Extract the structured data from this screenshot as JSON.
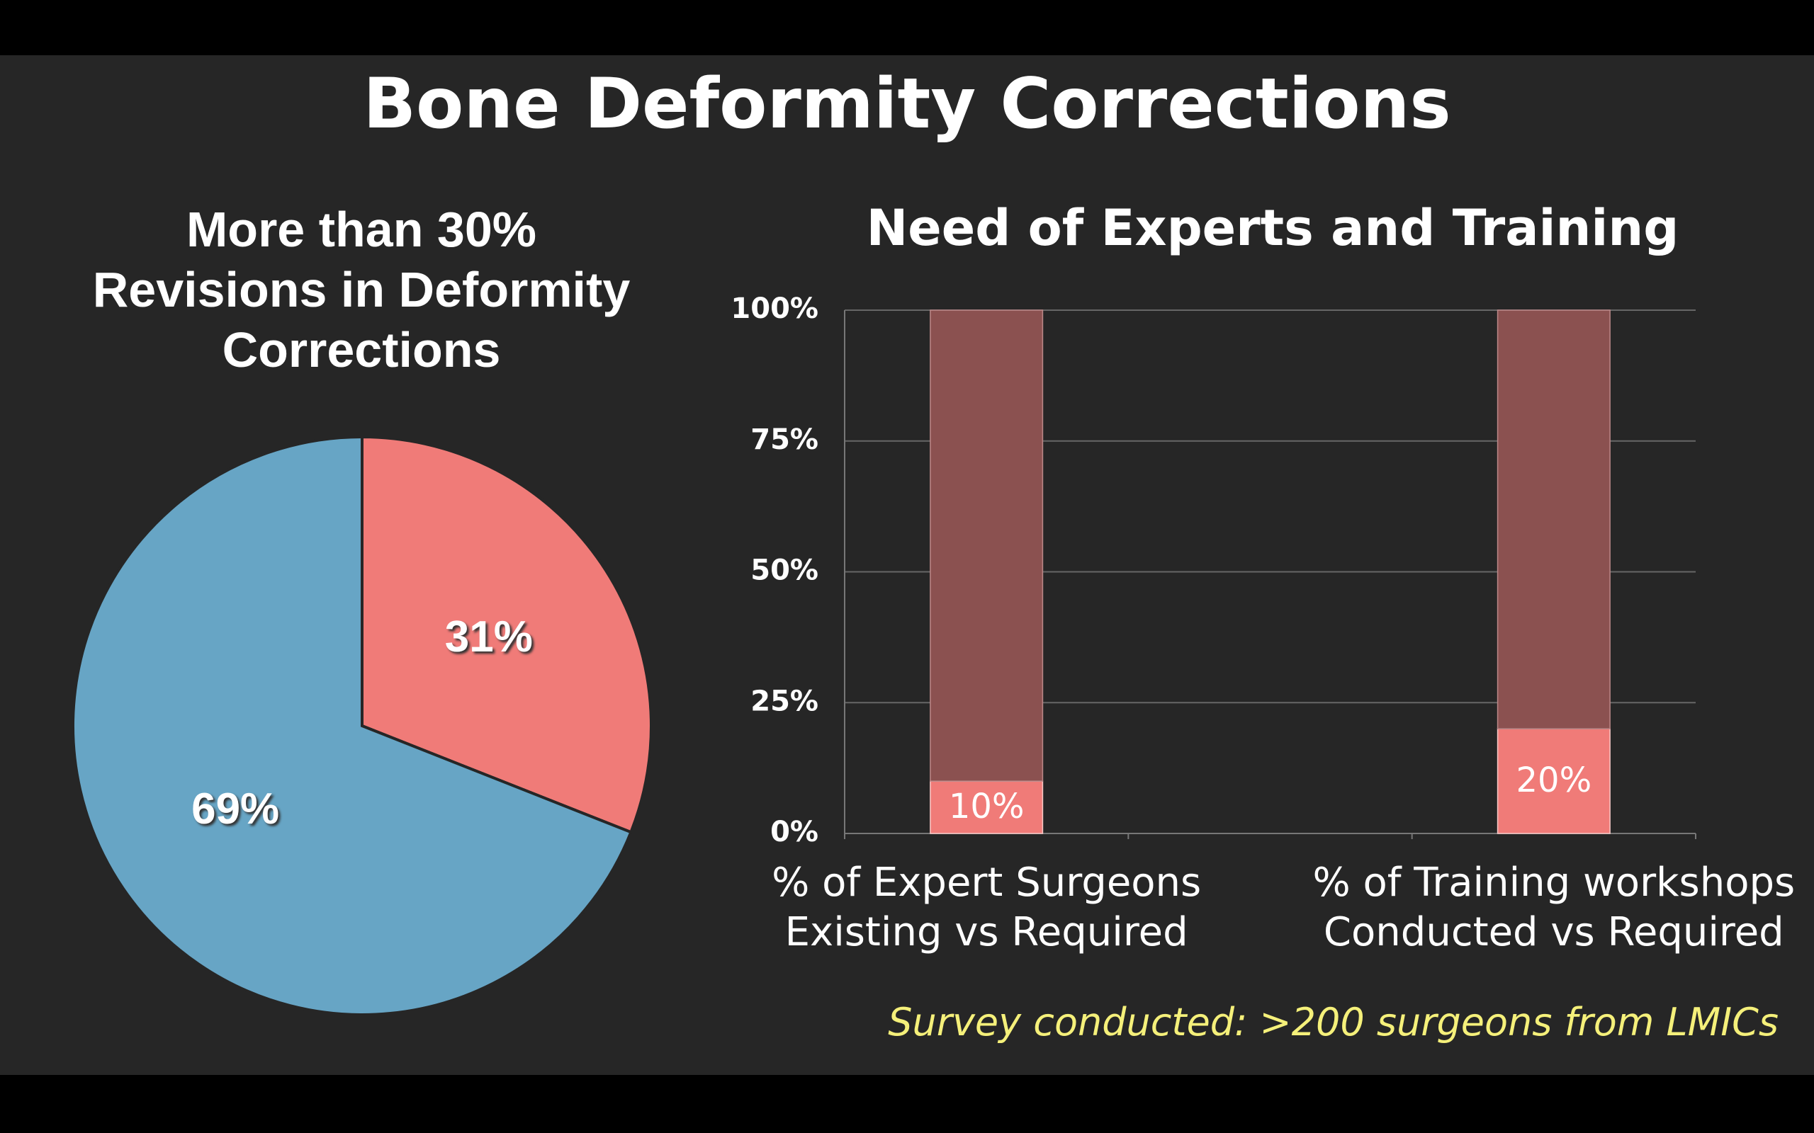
{
  "title": "Bone Deformity Corrections",
  "footnote": "Survey conducted: >200 surgeons from LMICs",
  "chart_data": [
    {
      "type": "pie",
      "title": "More than 30%\nRevisions in Deformity\nCorrections",
      "values": [
        31,
        69
      ],
      "value_labels": [
        "31%",
        "69%"
      ],
      "colors": [
        "#f07b78",
        "#67a5c5"
      ]
    },
    {
      "type": "bar",
      "stacked": true,
      "title": "Need of Experts and Training",
      "categories": [
        "% of Expert Surgeons\nExisting vs Required",
        "% of Training workshops\nConducted vs Required"
      ],
      "series": [
        {
          "color": "#f07b78",
          "values": [
            10,
            20
          ],
          "value_labels": [
            "10%",
            "20%"
          ]
        },
        {
          "color": "#8b5150",
          "values": [
            90,
            80
          ]
        }
      ],
      "ylim": [
        0,
        100
      ],
      "yticks": [
        {
          "value": 0,
          "label": "0%"
        },
        {
          "value": 25,
          "label": "25%"
        },
        {
          "value": 50,
          "label": "50%"
        },
        {
          "value": 75,
          "label": "75%"
        },
        {
          "value": 100,
          "label": "100%"
        }
      ],
      "grid": true
    }
  ]
}
